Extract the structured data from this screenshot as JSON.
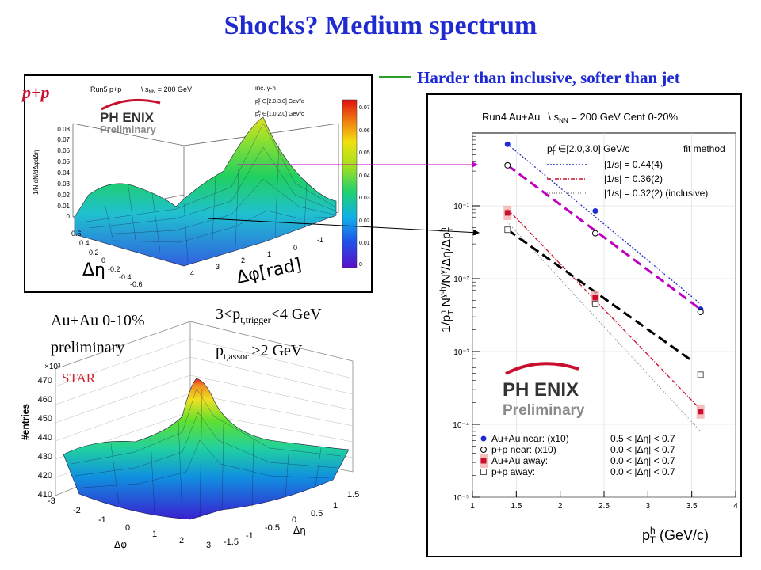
{
  "slide": {
    "title": "Shocks?  Medium spectrum",
    "subtitle": "Harder than inclusive, softer than jet",
    "pp_label": "p+p",
    "star_text": {
      "auau": "Au+Au 0-10%",
      "preliminary": "preliminary",
      "trigger": "3<p",
      "trigger_sub": "t,trigger",
      "trigger_end": "<4 GeV",
      "assoc": "p",
      "assoc_sub": "t,assoc.",
      "assoc_end": ">2 GeV",
      "star": "STAR"
    }
  },
  "colors": {
    "title": "#1f2bd0",
    "pp_label": "#c8102e",
    "arrow_magenta": "#c000c0",
    "series_auau_near": "#1f2bd0",
    "series_auau_away": "#c8102e"
  },
  "pp_plot": {
    "run_label": "Run5 p+p",
    "sqrt_label": "\\ s",
    "sqrt_sub": "NN",
    "sqrt_end": " = 200 GeV",
    "inc_label": "inc.  γ-h",
    "pt_gamma_label": "p",
    "pt_gamma_sup": "γ",
    "pt_gamma_sub": "T",
    "pt_gamma_range": " ∈[2.0,3.0] GeV/c",
    "pt_h_label": "p",
    "pt_h_sup": "h",
    "pt_h_sub": "T",
    "pt_h_range": " ∈[1.0,2.0] GeV/c",
    "phenix": "PH ENIX",
    "preliminary": "Preliminary",
    "zaxis_ticks": [
      "0.08",
      "0.07",
      "0.06",
      "0.05",
      "0.04",
      "0.03",
      "0.02",
      "0.01",
      "0"
    ],
    "eta_ticks": [
      "0.6",
      "0.4",
      "0.2",
      "0",
      "-0.2",
      "-0.4",
      "-0.6"
    ],
    "phi_ticks": [
      "4",
      "3",
      "2",
      "1",
      "0",
      "-1"
    ],
    "eta_label": "Δη",
    "phi_label": "Δφ[rad]",
    "colorbar_ticks": [
      "0.07",
      "0.06",
      "0.05",
      "0.04",
      "0.03",
      "0.02",
      "0.01",
      "0"
    ]
  },
  "star_plot": {
    "z_exponent": "×10³",
    "z_ticks": [
      "470",
      "460",
      "450",
      "440",
      "430",
      "420",
      "410"
    ],
    "z_label": "#entries",
    "phi_ticks": [
      "-3",
      "-2",
      "-1",
      "0",
      "1",
      "2",
      "3"
    ],
    "eta_ticks": [
      "1.5",
      "1",
      "0.5",
      "0",
      "-0.5",
      "-1",
      "-1.5"
    ],
    "phi_label": "Δφ",
    "eta_label": "Δη"
  },
  "chart_data": {
    "type": "scatter",
    "header": "Run4 Au+Au",
    "header_sqrt": "\\ s",
    "header_sub": "NN",
    "header_end": " = 200 GeV Cent 0-20%",
    "xlabel": "p",
    "xlabel_sup": "h",
    "xlabel_sub": "T",
    "xlabel_units": " (GeV/c)",
    "ylabel": "1/p_T^h N^{γ-h}/N^γ/Δη/Δp_T^h",
    "xlim": [
      1,
      4
    ],
    "ylim": [
      1e-05,
      1
    ],
    "yscale": "log",
    "x_ticks": [
      "1",
      "1.5",
      "2",
      "2.5",
      "3",
      "3.5",
      "4"
    ],
    "y_ticks": [
      "10⁻⁵",
      "10⁻⁴",
      "10⁻³",
      "10⁻²",
      "10⁻¹"
    ],
    "fit_header_label": "p",
    "fit_header_sup": "γ",
    "fit_header_sub": "T",
    "fit_header_range": " ∈[2.0,3.0] GeV/c",
    "fit_method": "fit method",
    "fits": [
      {
        "label": "|1/s| = 0.44(4)",
        "color": "#2030c0",
        "dash": "2,2",
        "x": [
          1.4,
          3.6
        ],
        "y": [
          0.7,
          0.0045
        ]
      },
      {
        "label": "|1/s| = 0.36(2)",
        "color": "#c8102e",
        "dash": "5,2,1,2",
        "x": [
          1.4,
          3.6
        ],
        "y": [
          0.09,
          0.00016
        ]
      },
      {
        "label": "|1/s| = 0.32(2) (inclusive)",
        "color": "#909090",
        "dash": "1,2",
        "x": [
          1.4,
          3.6
        ],
        "y": [
          0.06,
          8e-05
        ]
      }
    ],
    "extra_lines": [
      {
        "color": "#c000c0",
        "dash": "12,6",
        "x": [
          1.4,
          3.6
        ],
        "y": [
          0.36,
          0.0038
        ]
      },
      {
        "color": "#000000",
        "dash": "12,6",
        "x": [
          1.4,
          3.5
        ],
        "y": [
          0.047,
          0.00075
        ]
      }
    ],
    "series": [
      {
        "name": "Au+Au near: (x10)",
        "range": "0.5 < |Δη| < 0.7",
        "marker": "filled-circle",
        "color": "#1f2bd0",
        "x": [
          1.4,
          2.4,
          3.6
        ],
        "y": [
          0.7,
          0.085,
          0.0038
        ]
      },
      {
        "name": "p+p near: (x10)",
        "range": "0.0 < |Δη| < 0.7",
        "marker": "open-circle",
        "color": "#000000",
        "x": [
          1.4,
          2.4,
          3.6
        ],
        "y": [
          0.36,
          0.042,
          0.0035
        ]
      },
      {
        "name": "Au+Au away:",
        "range": "0.0 < |Δη| < 0.7",
        "marker": "filled-square",
        "color": "#c8102e",
        "x": [
          1.4,
          2.4,
          3.6
        ],
        "y": [
          0.08,
          0.0055,
          0.00015
        ]
      },
      {
        "name": "p+p away:",
        "range": "0.0 < |Δη| < 0.7",
        "marker": "open-square",
        "color": "#555555",
        "x": [
          1.4,
          2.4,
          3.6
        ],
        "y": [
          0.047,
          0.0045,
          0.00048
        ]
      }
    ],
    "phenix": "PH ENIX",
    "preliminary": "Preliminary"
  }
}
